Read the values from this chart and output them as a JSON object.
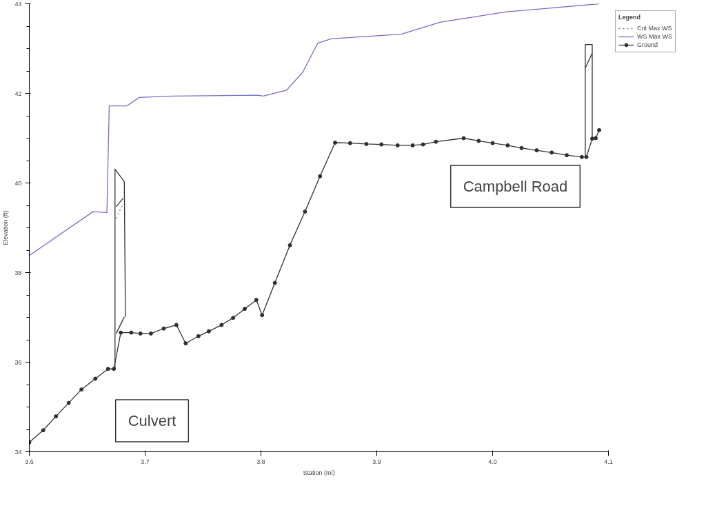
{
  "chart_data": {
    "type": "line",
    "xlabel": "Station (mi)",
    "ylabel": "Elevation (ft)",
    "legend_title": "Legend",
    "legend": "top right",
    "grid": false,
    "xlim": [
      3.6,
      4.1
    ],
    "xticks": [
      3.6,
      3.7,
      3.8,
      3.9,
      {
        "value": 4.0,
        "label": "4.0"
      },
      4.1
    ],
    "ylim": [
      34,
      44
    ],
    "yticks": [
      34,
      36,
      38,
      40,
      42,
      44
    ],
    "annotations": [
      "Culvert",
      "Campbell Road"
    ],
    "series": [
      {
        "name": "Crit Max WS",
        "color": "#7a7a9a",
        "line_style": "dotted",
        "marker": "none",
        "x": [
          3.675,
          3.681
        ],
        "values": [
          39.21,
          39.54
        ]
      },
      {
        "name": "WS Max WS",
        "color": "#6f6fd0",
        "line_style": "solid",
        "marker": "none",
        "x": [
          3.6,
          3.655,
          3.667,
          3.669,
          3.684,
          3.695,
          3.723,
          3.797,
          3.802,
          3.822,
          3.836,
          3.849,
          3.861,
          3.921,
          3.955,
          4.012,
          4.092
        ],
        "values": [
          38.38,
          39.36,
          39.34,
          41.72,
          41.72,
          41.91,
          41.94,
          41.96,
          41.94,
          42.07,
          42.47,
          43.12,
          43.22,
          43.32,
          43.59,
          43.82,
          44.0
        ]
      },
      {
        "name": "Ground",
        "color": "#303030",
        "line_style": "solid",
        "marker": "circle",
        "x": [
          3.6,
          3.612,
          3.623,
          3.634,
          3.645,
          3.657,
          3.668,
          3.673,
          3.679,
          3.688,
          3.696,
          3.705,
          3.716,
          3.727,
          3.735,
          3.746,
          3.755,
          3.766,
          3.776,
          3.786,
          3.796,
          3.801,
          3.812,
          3.825,
          3.838,
          3.851,
          3.864,
          3.877,
          3.891,
          3.904,
          3.918,
          3.931,
          3.94,
          3.951,
          3.975,
          3.988,
          4.0,
          4.013,
          4.025,
          4.038,
          4.051,
          4.064,
          4.077,
          4.081,
          4.086,
          4.089,
          4.092
        ],
        "values": [
          34.21,
          34.48,
          34.79,
          35.09,
          35.39,
          35.63,
          35.85,
          35.85,
          36.66,
          36.66,
          36.64,
          36.64,
          36.75,
          36.83,
          36.42,
          36.58,
          36.69,
          36.83,
          36.99,
          37.19,
          37.39,
          37.05,
          37.77,
          38.61,
          39.36,
          40.15,
          40.9,
          40.89,
          40.87,
          40.86,
          40.84,
          40.84,
          40.86,
          40.92,
          41.0,
          40.94,
          40.89,
          40.84,
          40.78,
          40.73,
          40.68,
          40.62,
          40.58,
          40.58,
          40.99,
          41.0,
          41.18
        ]
      },
      {
        "color": "#303030",
        "line_style": "solid",
        "marker": "none",
        "x": [
          3.674,
          3.674,
          3.682,
          3.683
        ],
        "values": [
          35.85,
          40.31,
          40.03,
          37.01
        ]
      },
      {
        "color": "#303030",
        "line_style": "solid",
        "marker": "none",
        "x": [
          3.675,
          3.681
        ],
        "values": [
          39.47,
          39.66
        ]
      },
      {
        "color": "#303030",
        "line_style": "solid",
        "marker": "none",
        "x": [
          3.675,
          3.682
        ],
        "values": [
          36.64,
          37.01
        ]
      },
      {
        "color": "#303030",
        "line_style": "solid",
        "marker": "none",
        "x": [
          4.08,
          4.08,
          4.086,
          4.086
        ],
        "values": [
          40.58,
          43.09,
          43.09,
          40.99
        ]
      },
      {
        "color": "#303030",
        "line_style": "solid",
        "marker": "none",
        "x": [
          4.08,
          4.086
        ],
        "values": [
          42.56,
          42.9
        ]
      }
    ]
  }
}
